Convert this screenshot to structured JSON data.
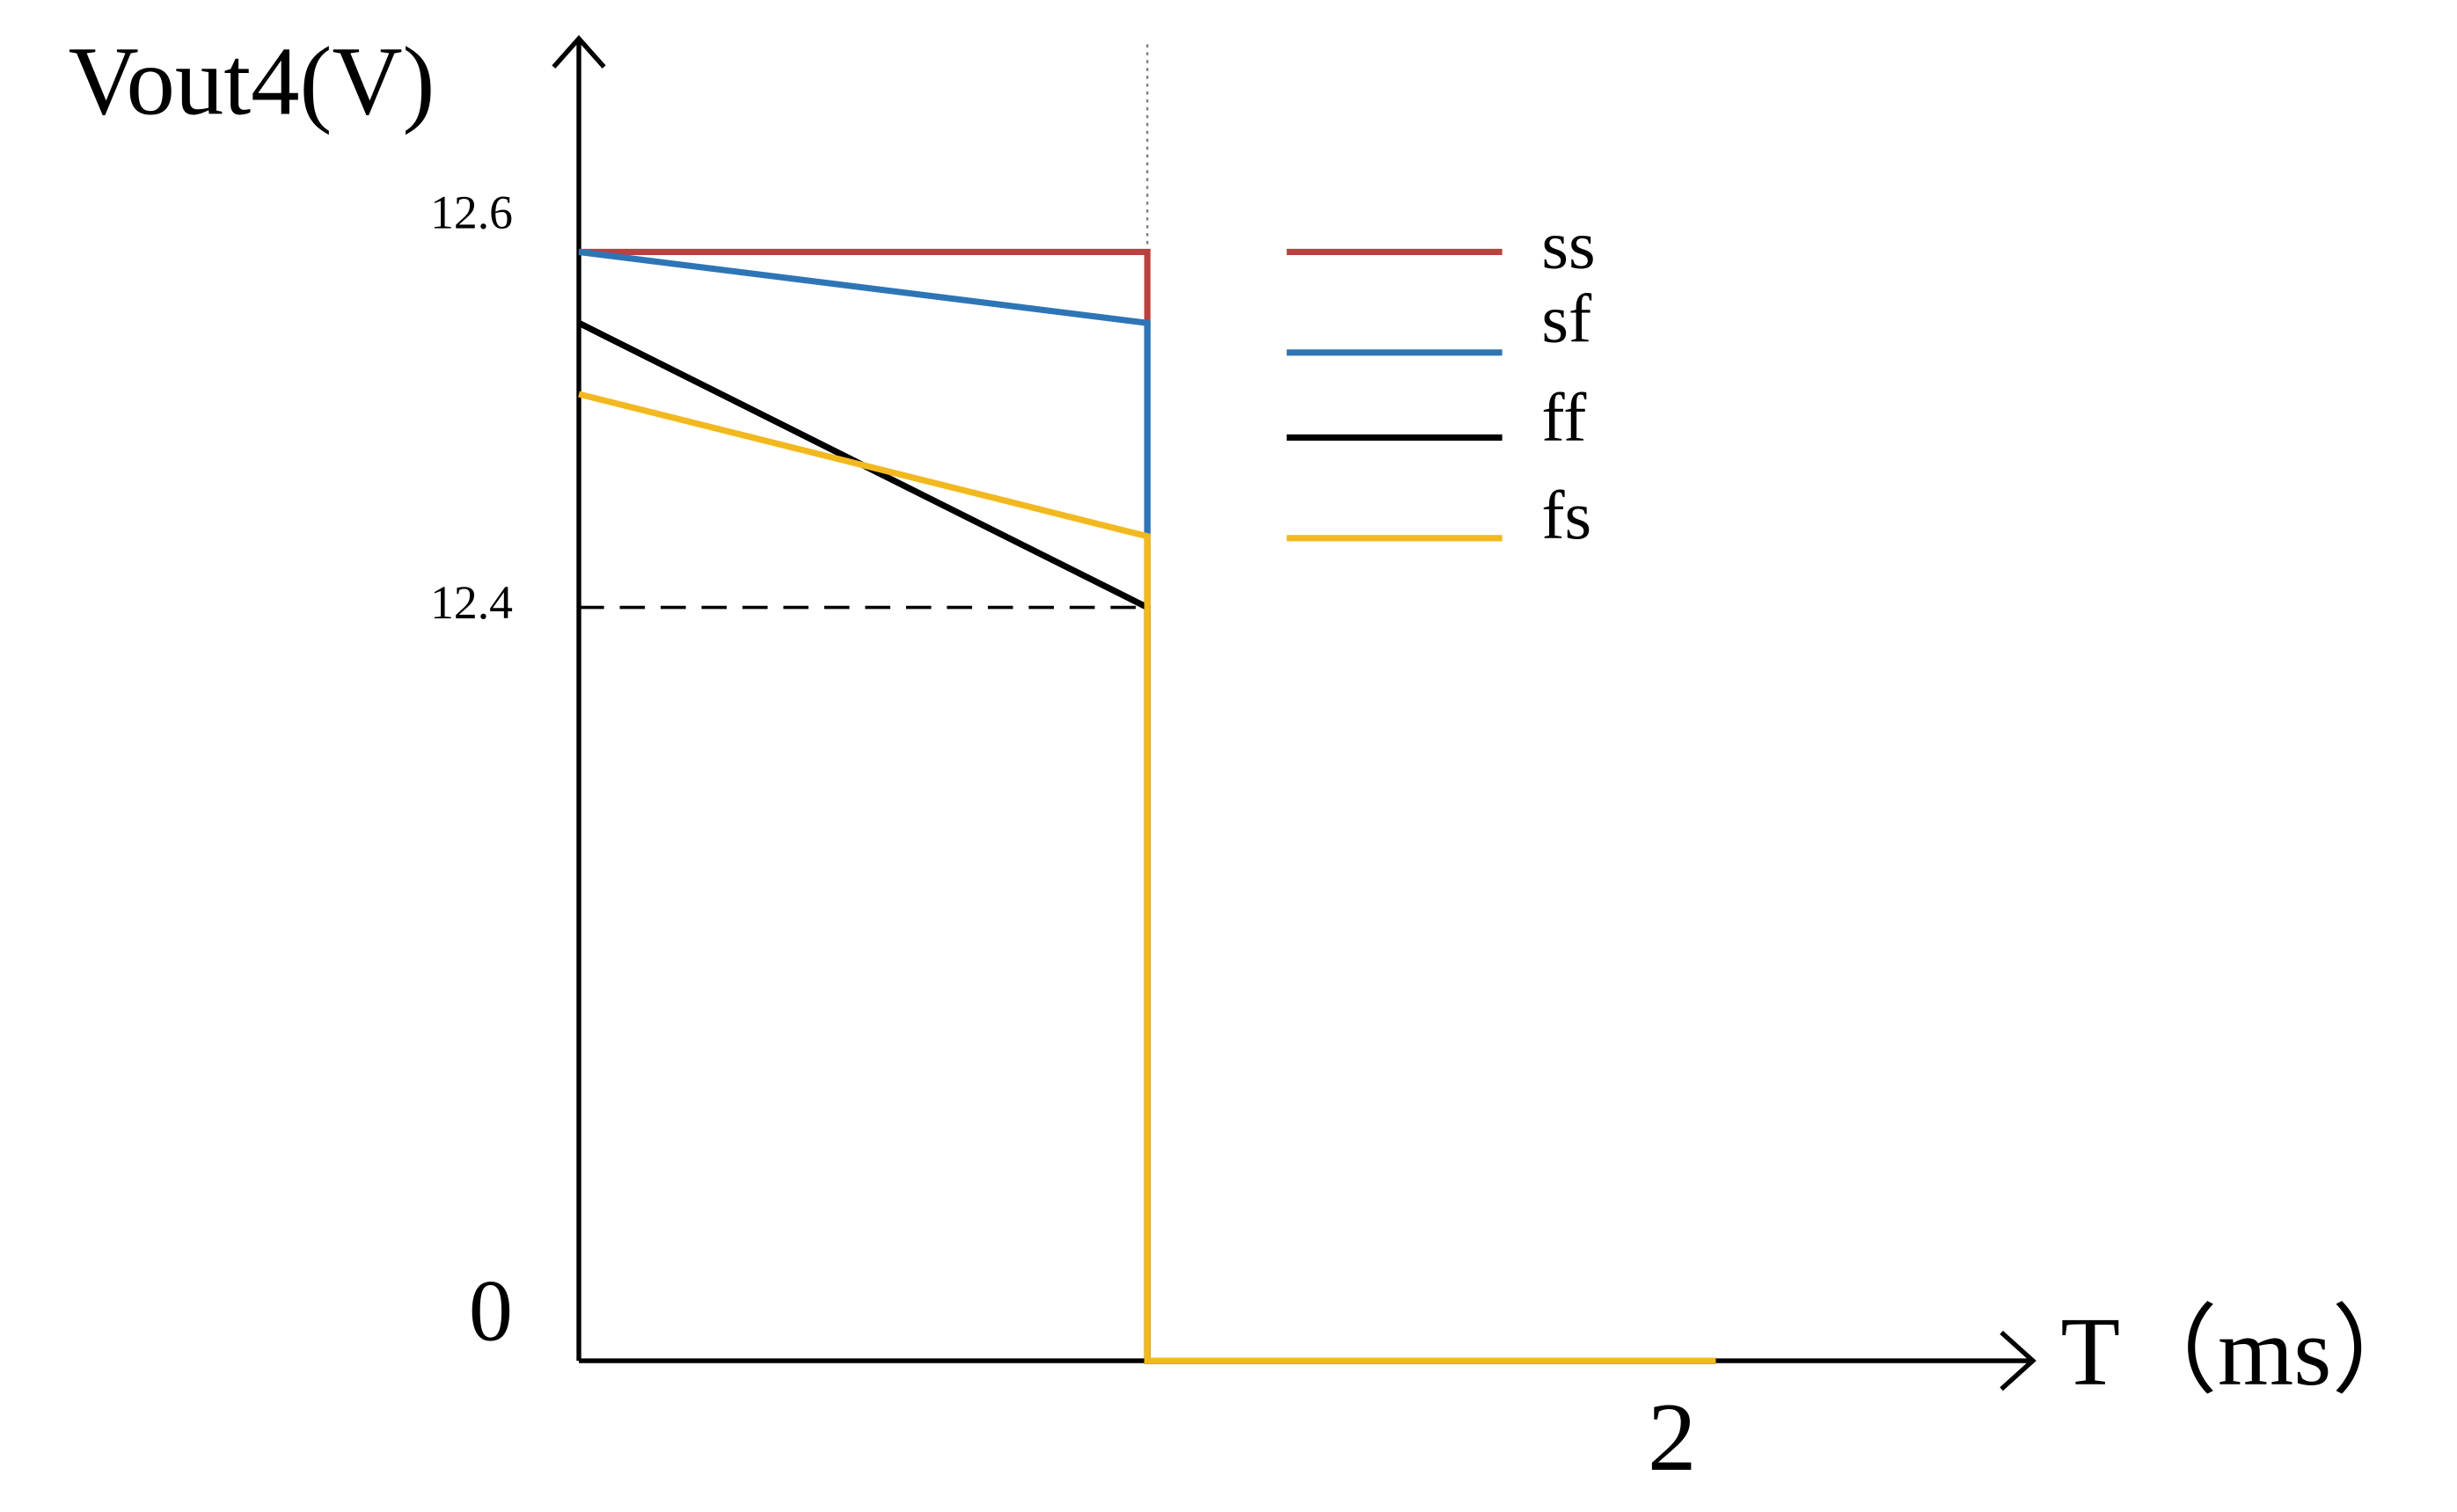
{
  "chart_data": {
    "type": "line",
    "y_label": "Vout4(V)",
    "x_label": "T（ms）",
    "x": [
      0,
      1.04,
      1.04,
      2.08
    ],
    "xlim": [
      0,
      2.66
    ],
    "xticks": [
      2
    ],
    "ylim": [
      0,
      12.72
    ],
    "yticks": [
      0,
      12.4,
      12.6
    ],
    "series": [
      {
        "name": "ss",
        "color": "#b8423f",
        "values": [
          12.6,
          12.6,
          0,
          0
        ]
      },
      {
        "name": "sf",
        "color": "#2e75b6",
        "values": [
          12.6,
          12.56,
          0,
          0
        ]
      },
      {
        "name": "ff",
        "color": "#000000",
        "values": [
          12.56,
          12.4,
          0,
          0
        ]
      },
      {
        "name": "fs",
        "color": "#f2b91f",
        "values": [
          12.52,
          12.44,
          0,
          0
        ]
      }
    ]
  }
}
